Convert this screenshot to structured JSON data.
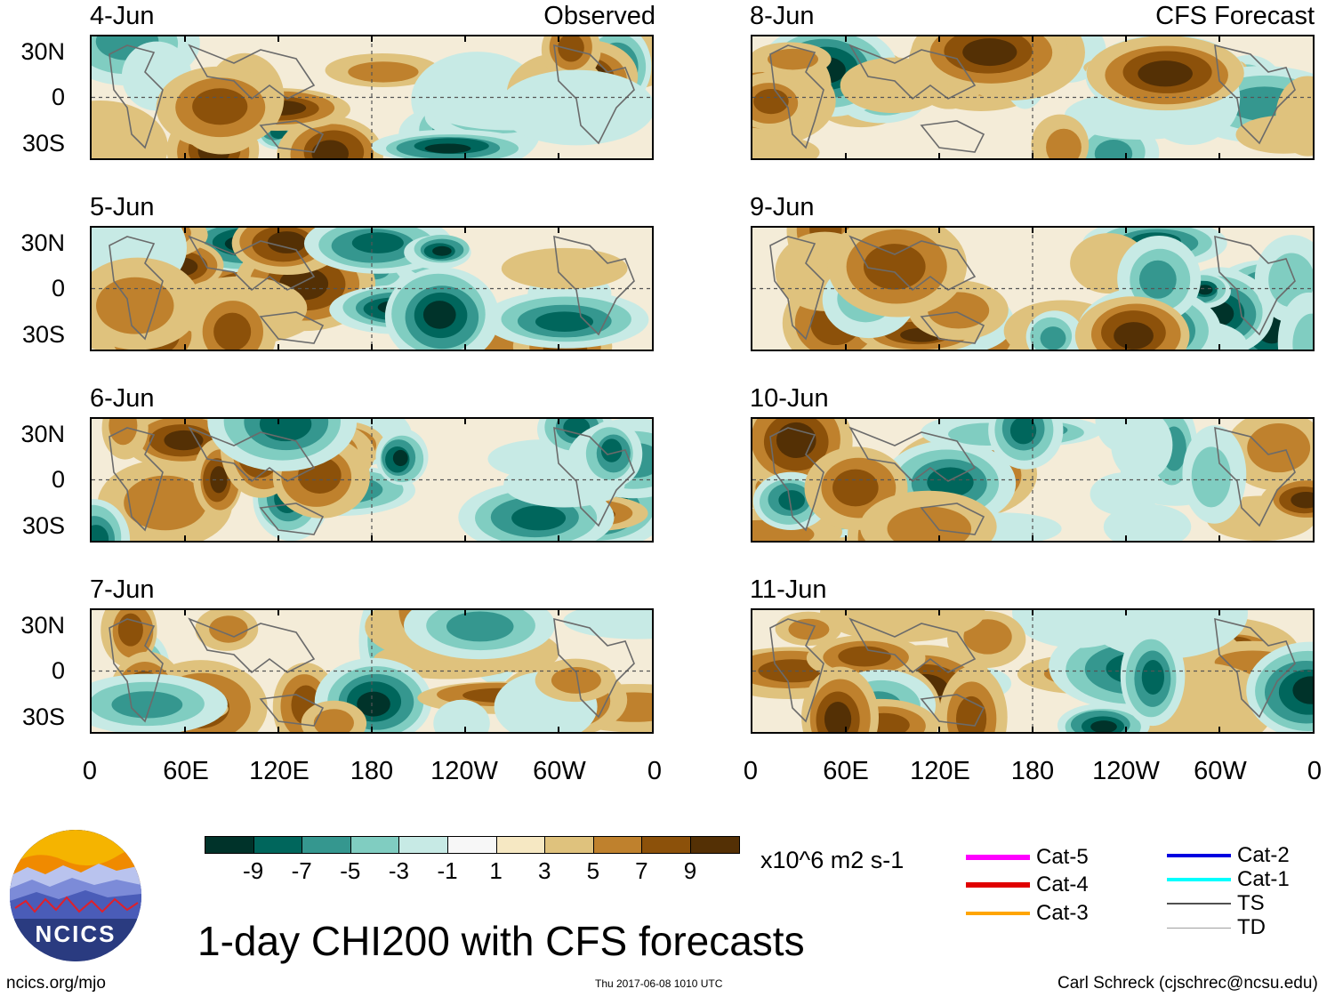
{
  "chart_data": {
    "type": "heatmap",
    "title": "1-day CHI200 with CFS forecasts",
    "units": "x10^6 m2 s-1",
    "x_ticks": [
      "0",
      "60E",
      "120E",
      "180",
      "120W",
      "60W",
      "0"
    ],
    "y_ticks": [
      "30N",
      "0",
      "30S"
    ],
    "columns": [
      {
        "label": "Observed",
        "panels": [
          "4-Jun",
          "5-Jun",
          "6-Jun",
          "7-Jun"
        ]
      },
      {
        "label": "CFS Forecast",
        "panels": [
          "8-Jun",
          "9-Jun",
          "10-Jun",
          "11-Jun"
        ]
      }
    ],
    "colorbar": {
      "colors": [
        "#00332a",
        "#00665c",
        "#35978f",
        "#80cdc1",
        "#c7eae5",
        "#f7f7f7",
        "#f6e8c3",
        "#dfc27d",
        "#bf812d",
        "#8c510a",
        "#543005"
      ],
      "labels": [
        "-9",
        "-7",
        "-5",
        "-3",
        "-1",
        "1",
        "3",
        "5",
        "7",
        "9"
      ]
    },
    "legend": [
      {
        "label": "Cat-5",
        "color": "#ff00ff"
      },
      {
        "label": "Cat-4",
        "color": "#e00000"
      },
      {
        "label": "Cat-3",
        "color": "#ffa500"
      },
      {
        "label": "Cat-2",
        "color": "#0000e0"
      },
      {
        "label": "Cat-1",
        "color": "#00ffff"
      },
      {
        "label": "TS",
        "color": "#505050"
      },
      {
        "label": "TD",
        "color": "#a0a0a0"
      }
    ]
  },
  "footer": {
    "left": "ncics.org/mjo",
    "center": "Thu 2017-06-08 1010 UTC",
    "right": "Carl Schreck (cjschrec@ncsu.edu)"
  },
  "logo": {
    "text": "NCICS"
  }
}
